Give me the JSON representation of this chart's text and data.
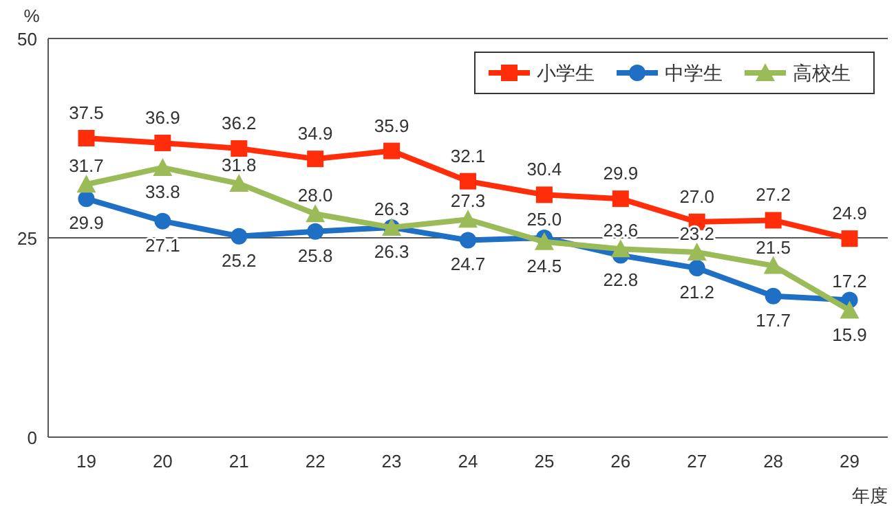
{
  "chart_data": {
    "type": "line",
    "ylabel": "%",
    "xlabel": "年度",
    "categories": [
      "19",
      "20",
      "21",
      "22",
      "23",
      "24",
      "25",
      "26",
      "27",
      "28",
      "29"
    ],
    "series": [
      {
        "name": "小学生",
        "color": "#ff2d0a",
        "marker": "square",
        "values": [
          37.5,
          36.9,
          36.2,
          34.9,
          35.9,
          32.1,
          30.4,
          29.9,
          27.0,
          27.2,
          24.9
        ],
        "value_labels": [
          "37.5",
          "36.9",
          "36.2",
          "34.9",
          "35.9",
          "32.1",
          "30.4",
          "29.9",
          "27.0",
          "27.2",
          "24.9"
        ]
      },
      {
        "name": "中学生",
        "color": "#1f6fc5",
        "marker": "circle",
        "values": [
          29.9,
          27.1,
          25.2,
          25.8,
          26.3,
          24.7,
          25.0,
          22.8,
          21.2,
          17.7,
          17.2
        ],
        "value_labels": [
          "29.9",
          "27.1",
          "25.2",
          "25.8",
          "26.3",
          "24.7",
          "25.0",
          "22.8",
          "21.2",
          "17.7",
          "17.2"
        ]
      },
      {
        "name": "高校生",
        "color": "#9bbb59",
        "marker": "triangle",
        "values": [
          31.7,
          33.8,
          31.8,
          28.0,
          26.3,
          27.3,
          24.5,
          23.6,
          23.2,
          21.5,
          15.9
        ],
        "value_labels": [
          "31.7",
          "33.8",
          "31.8",
          "28.0",
          "26.3",
          "27.3",
          "24.5",
          "23.6",
          "23.2",
          "21.5",
          "15.9"
        ]
      }
    ],
    "ylim": [
      0,
      50
    ],
    "yticks": [
      0,
      25,
      50
    ],
    "grid": "y",
    "legend": "top right",
    "line_style": "solid"
  }
}
